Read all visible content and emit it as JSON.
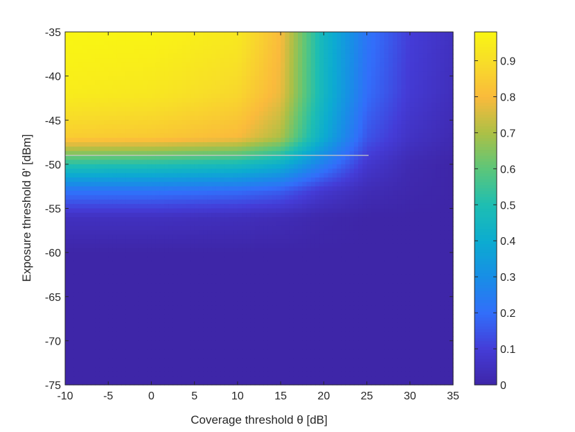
{
  "chart_data": {
    "type": "heatmap",
    "title": "",
    "xlabel": "Coverage threshold θ [dB]",
    "ylabel": "Exposure threshold θ' [dBm]",
    "xlim": [
      -10,
      35
    ],
    "ylim": [
      -75,
      -35
    ],
    "x_ticks": [
      "-10",
      "-5",
      "0",
      "5",
      "10",
      "15",
      "20",
      "25",
      "30",
      "35"
    ],
    "y_ticks": [
      "-35",
      "-40",
      "-45",
      "-50",
      "-55",
      "-60",
      "-65",
      "-70",
      "-75"
    ],
    "colorbar": {
      "range": [
        0,
        0.98
      ],
      "ticks": [
        "0",
        "0.1",
        "0.2",
        "0.3",
        "0.4",
        "0.5",
        "0.6",
        "0.7",
        "0.8",
        "0.9"
      ],
      "colormap": "parula"
    },
    "grid": false,
    "annotations": [
      {
        "type": "hline",
        "y": -49,
        "x_start": -10,
        "x_end": 25.2,
        "color": "#c8c8c8"
      }
    ],
    "surface_samples": {
      "x": [
        -10,
        0,
        10,
        15,
        20,
        25,
        30,
        35
      ],
      "y": [
        -36,
        -42,
        -47,
        -50,
        -53,
        -56,
        -60
      ],
      "values": [
        [
          0.98,
          0.97,
          0.93,
          0.8,
          0.45,
          0.22,
          0.1,
          0.05
        ],
        [
          0.95,
          0.93,
          0.88,
          0.78,
          0.45,
          0.2,
          0.09,
          0.04
        ],
        [
          0.85,
          0.84,
          0.8,
          0.7,
          0.4,
          0.15,
          0.06,
          0.02
        ],
        [
          0.52,
          0.51,
          0.48,
          0.42,
          0.25,
          0.08,
          0.02,
          0.0
        ],
        [
          0.22,
          0.22,
          0.2,
          0.17,
          0.08,
          0.03,
          0.01,
          0.0
        ],
        [
          0.05,
          0.05,
          0.04,
          0.03,
          0.01,
          0.0,
          0.0,
          0.0
        ],
        [
          0.0,
          0.0,
          0.0,
          0.0,
          0.0,
          0.0,
          0.0,
          0.0
        ]
      ]
    }
  }
}
